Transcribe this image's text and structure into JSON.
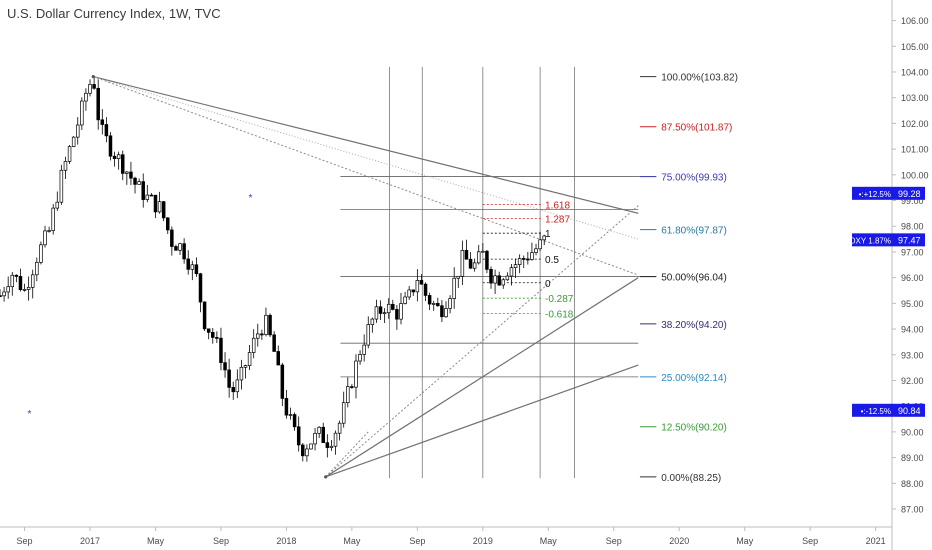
{
  "header": {
    "title": "U.S. Dollar Currency Index, 1W, TVC"
  },
  "colors": {
    "candle": "#000000",
    "fib_line": "#555555",
    "trend_line": "#707070",
    "badge_bg": "#1a1ae6",
    "badge_text": "#ffffff",
    "axis_text": "#4a4a4a",
    "axis_line": "#bdbdbd"
  },
  "chart_data": {
    "type": "candlestick",
    "title": "U.S. Dollar Currency Index, 1W, TVC",
    "x_ticks": [
      "Sep",
      "2017",
      "May",
      "Sep",
      "2018",
      "May",
      "Sep",
      "2019",
      "May",
      "Sep",
      "2020",
      "May",
      "Sep",
      "2021"
    ],
    "x_tick_positions": [
      0,
      4,
      8,
      12,
      16,
      20,
      24,
      28,
      32,
      36,
      40,
      44,
      48,
      52
    ],
    "x_range": [
      -1.5,
      53
    ],
    "ylim": [
      86.3,
      106.8
    ],
    "y_ticks": [
      87,
      88,
      89,
      90,
      91,
      92,
      93,
      94,
      95,
      96,
      97,
      98,
      99,
      100,
      101,
      102,
      103,
      104,
      105,
      106
    ],
    "y_tick_labels": [
      "87.00",
      "88.00",
      "89.00",
      "90.00",
      "91.00",
      "92.00",
      "93.00",
      "94.00",
      "95.00",
      "96.00",
      "97.00",
      "98.00",
      "99.00",
      "100.00",
      "101.00",
      "102.00",
      "103.00",
      "104.00",
      "105.00",
      "106.00"
    ],
    "candles_path": [
      [
        -1.5,
        95.3
      ],
      [
        -0.8,
        96.2
      ],
      [
        0,
        95.5
      ],
      [
        0.8,
        96.9
      ],
      [
        1.5,
        97.8
      ],
      [
        2.2,
        99.8
      ],
      [
        2.8,
        101.1
      ],
      [
        3.4,
        102.3
      ],
      [
        3.8,
        103.3
      ],
      [
        4.2,
        103.8
      ],
      [
        4.6,
        101.8
      ],
      [
        5.3,
        101.0
      ],
      [
        6.0,
        100.4
      ],
      [
        6.8,
        99.6
      ],
      [
        7.5,
        99.1
      ],
      [
        8.3,
        98.7
      ],
      [
        9.0,
        97.4
      ],
      [
        9.6,
        97.2
      ],
      [
        10.5,
        96.0
      ],
      [
        11.0,
        94.3
      ],
      [
        11.6,
        93.6
      ],
      [
        12.1,
        92.8
      ],
      [
        12.6,
        91.5
      ],
      [
        13.1,
        91.9
      ],
      [
        13.6,
        92.8
      ],
      [
        14.2,
        93.8
      ],
      [
        14.7,
        94.3
      ],
      [
        15.3,
        93.0
      ],
      [
        15.8,
        91.2
      ],
      [
        16.3,
        90.3
      ],
      [
        16.9,
        89.3
      ],
      [
        17.4,
        89.6
      ],
      [
        18.0,
        89.9
      ],
      [
        18.6,
        89.6
      ],
      [
        19.3,
        90.4
      ],
      [
        19.9,
        91.8
      ],
      [
        20.6,
        93.4
      ],
      [
        21.3,
        94.4
      ],
      [
        22.0,
        94.9
      ],
      [
        22.7,
        94.6
      ],
      [
        23.4,
        95.1
      ],
      [
        24.0,
        96.0
      ],
      [
        24.6,
        95.2
      ],
      [
        25.4,
        94.7
      ],
      [
        26.1,
        95.6
      ],
      [
        26.8,
        96.8
      ],
      [
        27.4,
        96.4
      ],
      [
        28.0,
        96.9
      ],
      [
        28.5,
        96.1
      ],
      [
        29.0,
        96.0
      ],
      [
        29.6,
        96.4
      ],
      [
        30.2,
        96.6
      ],
      [
        30.8,
        96.9
      ],
      [
        31.4,
        97.2
      ],
      [
        31.8,
        97.5
      ]
    ],
    "swing_high": {
      "x": 4.2,
      "y": 103.82
    },
    "swing_low": {
      "x": 18.4,
      "y": 88.25
    },
    "markers": [
      {
        "x": 13.8,
        "y": 99.1
      },
      {
        "x": 0.3,
        "y": 90.7
      }
    ],
    "fib_levels": [
      {
        "label": "100.00%(103.82)",
        "value": 103.82,
        "color": "#333333",
        "line": false
      },
      {
        "label": "87.50%(101.87)",
        "value": 101.87,
        "color": "#cc2222",
        "line": false
      },
      {
        "label": "75.00%(99.93)",
        "value": 99.93,
        "color": "#3a3ab0",
        "line": true
      },
      {
        "label": "61.80%(97.87)",
        "value": 97.87,
        "color": "#2a7aa0",
        "line": false
      },
      {
        "label": "50.00%(96.04)",
        "value": 96.04,
        "color": "#222222",
        "line": true
      },
      {
        "label": "38.20%(94.20)",
        "value": 94.2,
        "color": "#3a2a70",
        "line": false
      },
      {
        "label": "25.00%(92.14)",
        "value": 92.14,
        "color": "#2a8ac0",
        "line": false
      },
      {
        "label": "12.50%(90.20)",
        "value": 90.2,
        "color": "#3a9a3a",
        "line": false
      },
      {
        "label": "0.00%(88.25)",
        "value": 88.25,
        "color": "#333333",
        "line": false
      }
    ],
    "horizontal_lines": [
      99.93,
      98.65,
      96.04,
      93.45,
      92.14
    ],
    "time_lines_x": [
      22.3,
      24.3,
      28.0,
      31.5,
      33.6
    ],
    "extension": {
      "x_start": 28,
      "x_end": 31.6,
      "label_x": 31.8,
      "levels": [
        {
          "label": "1.618",
          "value": 98.85,
          "color": "#cc2222"
        },
        {
          "label": "1.287",
          "value": 98.3,
          "color": "#cc2222"
        },
        {
          "label": "1",
          "value": 97.73,
          "color": "#111111"
        },
        {
          "label": "0.5",
          "value": 96.72,
          "color": "#111111"
        },
        {
          "label": "0",
          "value": 95.8,
          "color": "#111111"
        },
        {
          "label": "-0.287",
          "value": 95.2,
          "color": "#3a9a3a"
        },
        {
          "label": "-0.618",
          "value": 94.6,
          "color": "#3a9a3a"
        }
      ]
    },
    "trend_lines": [
      {
        "from": [
          4.2,
          103.82
        ],
        "to": [
          37.5,
          98.5
        ],
        "style": "solid"
      },
      {
        "from": [
          4.2,
          103.82
        ],
        "to": [
          37.5,
          96.1
        ],
        "style": "dotted"
      },
      {
        "from": [
          4.2,
          103.82
        ],
        "to": [
          37.5,
          97.5
        ],
        "style": "dotted-light"
      },
      {
        "from": [
          18.4,
          88.25
        ],
        "to": [
          37.5,
          96.0
        ],
        "style": "solid"
      },
      {
        "from": [
          18.4,
          88.25
        ],
        "to": [
          37.5,
          92.6
        ],
        "style": "solid"
      },
      {
        "from": [
          18.4,
          88.25
        ],
        "to": [
          37.5,
          98.8
        ],
        "style": "dotted"
      },
      {
        "from": [
          18.4,
          88.25
        ],
        "to": [
          21.0,
          90.0
        ],
        "style": "dotted"
      }
    ],
    "price_badges": [
      {
        "label": "•:+12.5%",
        "value_label": "99.28",
        "value": 99.28
      },
      {
        "label": "DXY 1.87%",
        "value_label": "97.47",
        "value": 97.47
      },
      {
        "label": "•:-12.5%",
        "value_label": "90.84",
        "value": 90.84
      }
    ]
  }
}
